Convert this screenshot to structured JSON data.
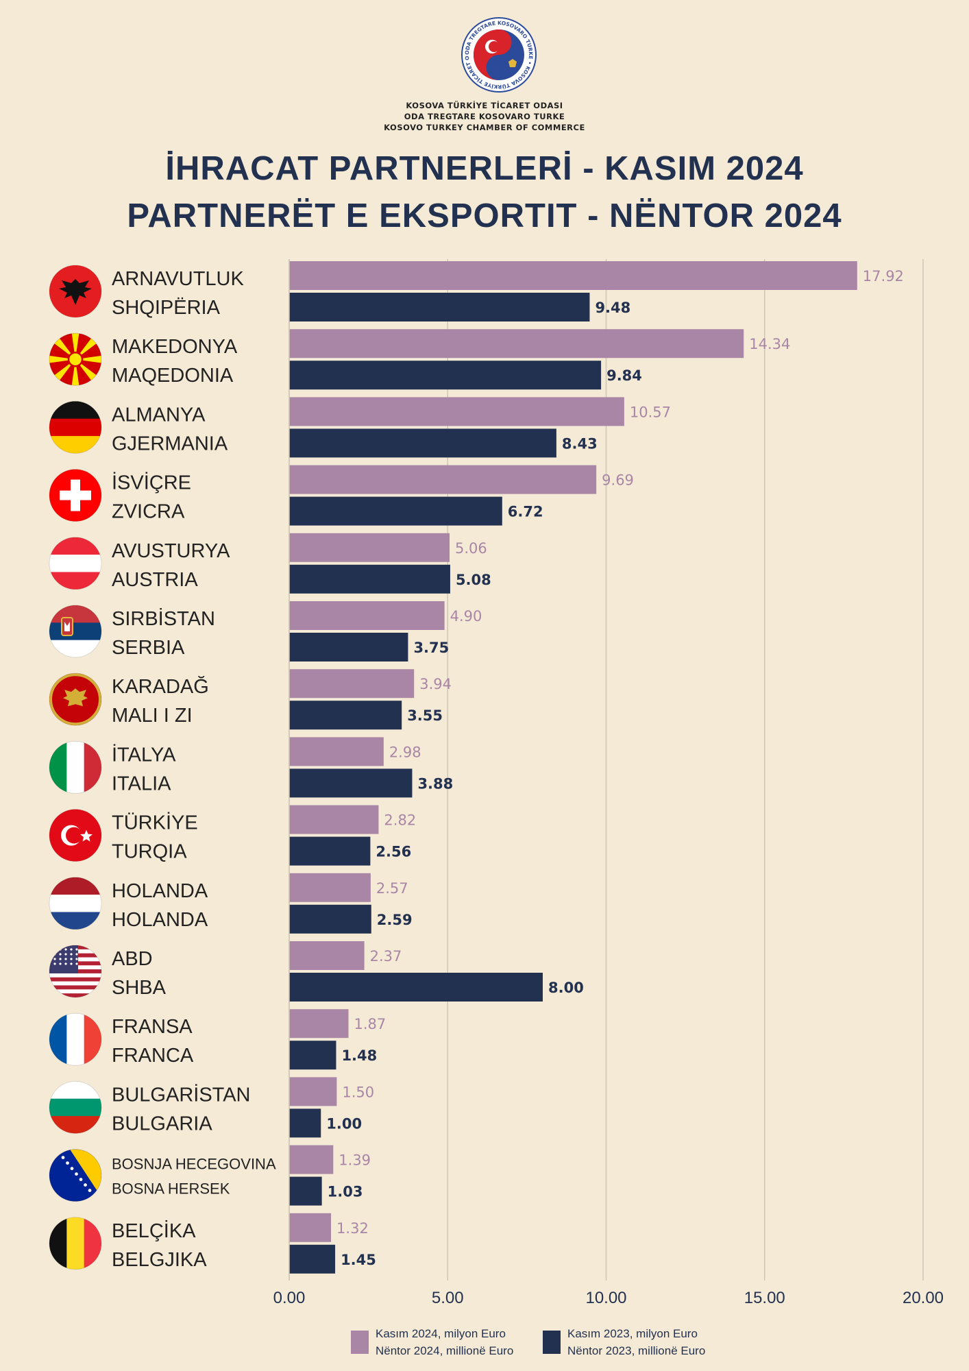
{
  "header": {
    "org_lines": [
      "KOSOVA TÜRKİYE TİCARET ODASI",
      "ODA TREGTARE KOSOVARO TURKE",
      "KOSOVO TURKEY CHAMBER OF COMMERCE"
    ],
    "logo_ring_text": "ODA TREGTARE KOSOVARO TURKE • KOSOVA TÜRKİYE TİCARET ODASI",
    "title_line1": "İHRACAT PARTNERLERİ - KASIM 2024",
    "title_line2": "PARTNERËT E EKSPORTIT - NËNTOR 2024"
  },
  "colors": {
    "background": "#f5ead6",
    "series_2024": "#a985a6",
    "series_2023": "#233150",
    "grid": "#cfc6b8",
    "text_dark": "#233150"
  },
  "legend": {
    "series_2024_line1": "Kasım 2024, milyon Euro",
    "series_2024_line2": "Nëntor 2024, millionë Euro",
    "series_2023_line1": "Kasım 2023, milyon Euro",
    "series_2023_line2": "Nëntor 2023, millionë Euro"
  },
  "chart_data": {
    "type": "bar",
    "orientation": "horizontal",
    "categories": [
      {
        "tr": "ARNAVUTLUK",
        "sq": "SHQIPËRIA",
        "flag": "albania-flag"
      },
      {
        "tr": "MAKEDONYA",
        "sq": "MAQEDONIA",
        "flag": "north-macedonia-flag"
      },
      {
        "tr": "ALMANYA",
        "sq": "GJERMANIA",
        "flag": "germany-flag"
      },
      {
        "tr": "İSVİÇRE",
        "sq": "ZVICRA",
        "flag": "switzerland-flag"
      },
      {
        "tr": "AVUSTURYA",
        "sq": "AUSTRIA",
        "flag": "austria-flag"
      },
      {
        "tr": "SIRBİSTAN",
        "sq": "SERBIA",
        "flag": "serbia-flag"
      },
      {
        "tr": "KARADAĞ",
        "sq": "MALI I ZI",
        "flag": "montenegro-flag"
      },
      {
        "tr": "İTALYA",
        "sq": "ITALIA",
        "flag": "italy-flag"
      },
      {
        "tr": "TÜRKİYE",
        "sq": "TURQIA",
        "flag": "turkey-flag"
      },
      {
        "tr": "HOLANDA",
        "sq": "HOLANDA",
        "flag": "netherlands-flag"
      },
      {
        "tr": "ABD",
        "sq": "SHBA",
        "flag": "usa-flag"
      },
      {
        "tr": "FRANSA",
        "sq": "FRANCA",
        "flag": "france-flag"
      },
      {
        "tr": "BULGARİSTAN",
        "sq": "BULGARIA",
        "flag": "bulgaria-flag"
      },
      {
        "tr": "BOSNJA HECEGOVINA",
        "sq": "BOSNA HERSEK",
        "flag": "bosnia-flag"
      },
      {
        "tr": "BELÇİKA",
        "sq": "BELGJIKA",
        "flag": "belgium-flag"
      }
    ],
    "series": [
      {
        "key": "series_2024",
        "values": [
          17.92,
          14.34,
          10.57,
          9.69,
          5.06,
          4.9,
          3.94,
          2.98,
          2.82,
          2.57,
          2.37,
          1.87,
          1.5,
          1.39,
          1.32
        ],
        "labels": [
          "17.92",
          "14.34",
          "10.57",
          "9.69",
          "5.06",
          "4.90",
          "3.94",
          "2.98",
          "2.82",
          "2.57",
          "2.37",
          "1.87",
          "1.50",
          "1.39",
          "1.32"
        ]
      },
      {
        "key": "series_2023",
        "values": [
          9.48,
          9.84,
          8.43,
          6.72,
          5.08,
          3.75,
          3.55,
          3.88,
          2.56,
          2.59,
          8.0,
          1.48,
          1.0,
          1.03,
          1.45
        ],
        "labels": [
          "9.48",
          "9.84",
          "8.43",
          "6.72",
          "5.08",
          "3.75",
          "3.55",
          "3.88",
          "2.56",
          "2.59",
          "8.00",
          "1.48",
          "1.00",
          "1.03",
          "1.45"
        ]
      }
    ],
    "xlim": [
      0,
      20
    ],
    "xticks": [
      0,
      5,
      10,
      15,
      20
    ],
    "xtick_labels": [
      "0.00",
      "5.00",
      "10.00",
      "15.00",
      "20.00"
    ],
    "grid": true,
    "legend_position": "bottom"
  }
}
